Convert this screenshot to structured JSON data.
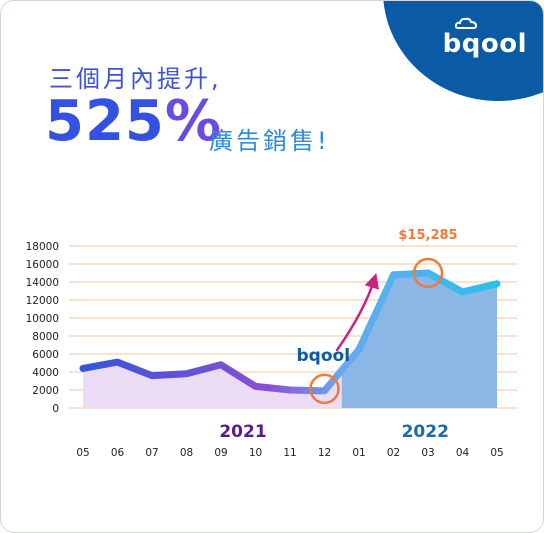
{
  "brand": {
    "logo_text": "bqool"
  },
  "headline": {
    "line1": "三個月內提升,",
    "big_number": "525",
    "big_unit": "%",
    "line2": "廣告銷售!"
  },
  "colors": {
    "brand_blue": "#0b5aa6",
    "line_2021": "#7b4fd8",
    "line_2022": "#4aa8ee",
    "area_2021": "#ead9f5",
    "area_2022": "#8cb6e6",
    "grid": "#f7d2b0",
    "highlight_circle": "#ef7a3b",
    "arrow": "#c8237f"
  },
  "chart_data": {
    "type": "area",
    "title": "",
    "xlabel": "",
    "ylabel": "",
    "ylim": [
      0,
      18000
    ],
    "yticks": [
      "0",
      "2000",
      "4000",
      "6000",
      "8000",
      "10000",
      "12000",
      "14000",
      "16000",
      "18000"
    ],
    "categories": [
      "05",
      "06",
      "07",
      "08",
      "09",
      "10",
      "11",
      "12",
      "01",
      "02",
      "03",
      "04",
      "05"
    ],
    "values": [
      4400,
      5100,
      3600,
      3800,
      4800,
      2400,
      2000,
      1900,
      6500,
      14800,
      15000,
      12900,
      13800
    ],
    "grid": true,
    "year_labels": [
      {
        "text": "2021",
        "color": "#5b1c86"
      },
      {
        "text": "2022",
        "color": "#1c6aa8"
      }
    ],
    "annotations": [
      {
        "label": "$15,285",
        "category_index": 10
      },
      {
        "label": "bqool",
        "category_index": 7
      }
    ]
  }
}
